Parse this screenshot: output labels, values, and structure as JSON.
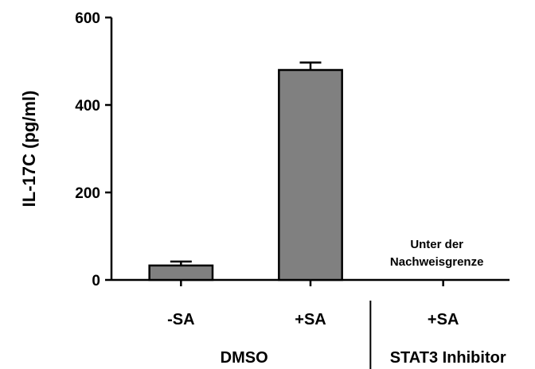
{
  "chart_data": {
    "type": "bar",
    "ylabel": "IL-17C (pg/ml)",
    "ylim": [
      0,
      600
    ],
    "yticks": [
      0,
      200,
      400,
      600
    ],
    "categories": [
      "-SA",
      "+SA",
      "+SA"
    ],
    "values": [
      33,
      480,
      null
    ],
    "errors": [
      9,
      17,
      null
    ],
    "groups": [
      {
        "label": "DMSO",
        "categories": [
          0,
          1
        ]
      },
      {
        "label": "STAT3 Inhibitor",
        "categories": [
          2
        ]
      }
    ],
    "annotation": {
      "category": 2,
      "lines": [
        "Unter der",
        "Nachweisgrenze"
      ]
    },
    "bar_color": "#808080",
    "grid": false,
    "legend": "none"
  }
}
